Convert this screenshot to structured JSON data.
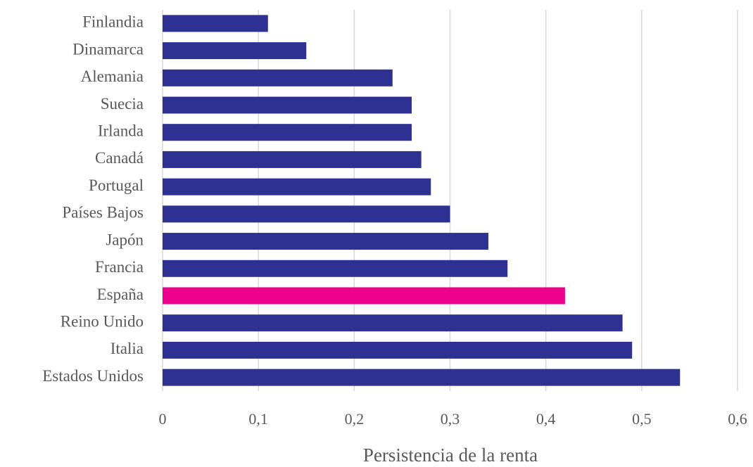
{
  "chart_data": {
    "type": "hbar",
    "x_label": "Persistencia de la renta",
    "categories": [
      "Finlandia",
      "Dinamarca",
      "Alemania",
      "Suecia",
      "Irlanda",
      "Canadá",
      "Portugal",
      "Países Bajos",
      "Japón",
      "Francia",
      "España",
      "Reino Unido",
      "Italia",
      "Estados Unidos"
    ],
    "values": [
      0.11,
      0.15,
      0.24,
      0.26,
      0.26,
      0.27,
      0.28,
      0.3,
      0.34,
      0.36,
      0.42,
      0.48,
      0.49,
      0.54
    ],
    "colors": [
      "#2e3192",
      "#2e3192",
      "#2e3192",
      "#2e3192",
      "#2e3192",
      "#2e3192",
      "#2e3192",
      "#2e3192",
      "#2e3192",
      "#2e3192",
      "#ec008c",
      "#2e3192",
      "#2e3192",
      "#2e3192"
    ],
    "xlim": [
      0,
      0.6
    ],
    "xticks": [
      0,
      {
        "value": 0.1,
        "label": "0,1"
      },
      {
        "value": 0.2,
        "label": "0,2"
      },
      {
        "value": 0.3,
        "label": "0,3"
      },
      {
        "value": 0.4,
        "label": "0,4"
      },
      {
        "value": 0.5,
        "label": "0,5"
      },
      {
        "value": 0.6,
        "label": "0,6"
      }
    ],
    "grid": true
  }
}
